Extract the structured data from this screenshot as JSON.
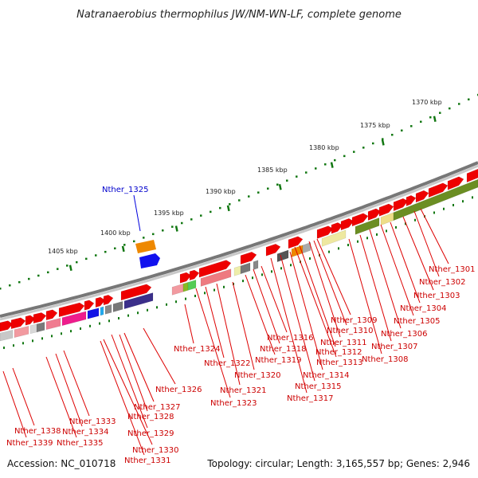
{
  "title": "Natranaerobius thermophilus JW/NM-WN-LF, complete genome",
  "footer": {
    "accession": "Accession: NC_010718",
    "topology": "Topology: circular; Length: 3,165,557 bp; Genes: 2,946"
  },
  "colors": {
    "backbone": "#8a8a8a",
    "gene_fwd": "#ee0000",
    "gene_highlight": "#1111ee",
    "label_line": "#dd0000",
    "highlight_line": "#0000dd",
    "tick": "#117711"
  },
  "ruler": {
    "unit": "kbp",
    "labels": [
      "1370 kbp",
      "1375 kbp",
      "1380 kbp",
      "1385 kbp",
      "1390 kbp",
      "1395 kbp",
      "1400 kbp",
      "1405 kbp"
    ]
  },
  "genes": [
    {
      "name": "Nther_1301",
      "highlight": false
    },
    {
      "name": "Nther_1302",
      "highlight": false
    },
    {
      "name": "Nther_1303",
      "highlight": false
    },
    {
      "name": "Nther_1304",
      "highlight": false
    },
    {
      "name": "Nther_1305",
      "highlight": false
    },
    {
      "name": "Nther_1306",
      "highlight": false
    },
    {
      "name": "Nther_1307",
      "highlight": false
    },
    {
      "name": "Nther_1308",
      "highlight": false
    },
    {
      "name": "Nther_1309",
      "highlight": false
    },
    {
      "name": "Nther_1310",
      "highlight": false
    },
    {
      "name": "Nther_1311",
      "highlight": false
    },
    {
      "name": "Nther_1312",
      "highlight": false
    },
    {
      "name": "Nther_1313",
      "highlight": false
    },
    {
      "name": "Nther_1314",
      "highlight": false
    },
    {
      "name": "Nther_1315",
      "highlight": false
    },
    {
      "name": "Nther_1316",
      "highlight": false
    },
    {
      "name": "Nther_1317",
      "highlight": false
    },
    {
      "name": "Nther_1318",
      "highlight": false
    },
    {
      "name": "Nther_1319",
      "highlight": false
    },
    {
      "name": "Nther_1320",
      "highlight": false
    },
    {
      "name": "Nther_1321",
      "highlight": false
    },
    {
      "name": "Nther_1322",
      "highlight": false
    },
    {
      "name": "Nther_1323",
      "highlight": false
    },
    {
      "name": "Nther_1324",
      "highlight": false
    },
    {
      "name": "Nther_1325",
      "highlight": true
    },
    {
      "name": "Nther_1326",
      "highlight": false
    },
    {
      "name": "Nther_1327",
      "highlight": false
    },
    {
      "name": "Nther_1328",
      "highlight": false
    },
    {
      "name": "Nther_1329",
      "highlight": false
    },
    {
      "name": "Nther_1330",
      "highlight": false
    },
    {
      "name": "Nther_1331",
      "highlight": false
    },
    {
      "name": "Nther_1333",
      "highlight": false
    },
    {
      "name": "Nther_1334",
      "highlight": false
    },
    {
      "name": "Nther_1335",
      "highlight": false
    },
    {
      "name": "Nther_1338",
      "highlight": false
    },
    {
      "name": "Nther_1339",
      "highlight": false
    }
  ]
}
